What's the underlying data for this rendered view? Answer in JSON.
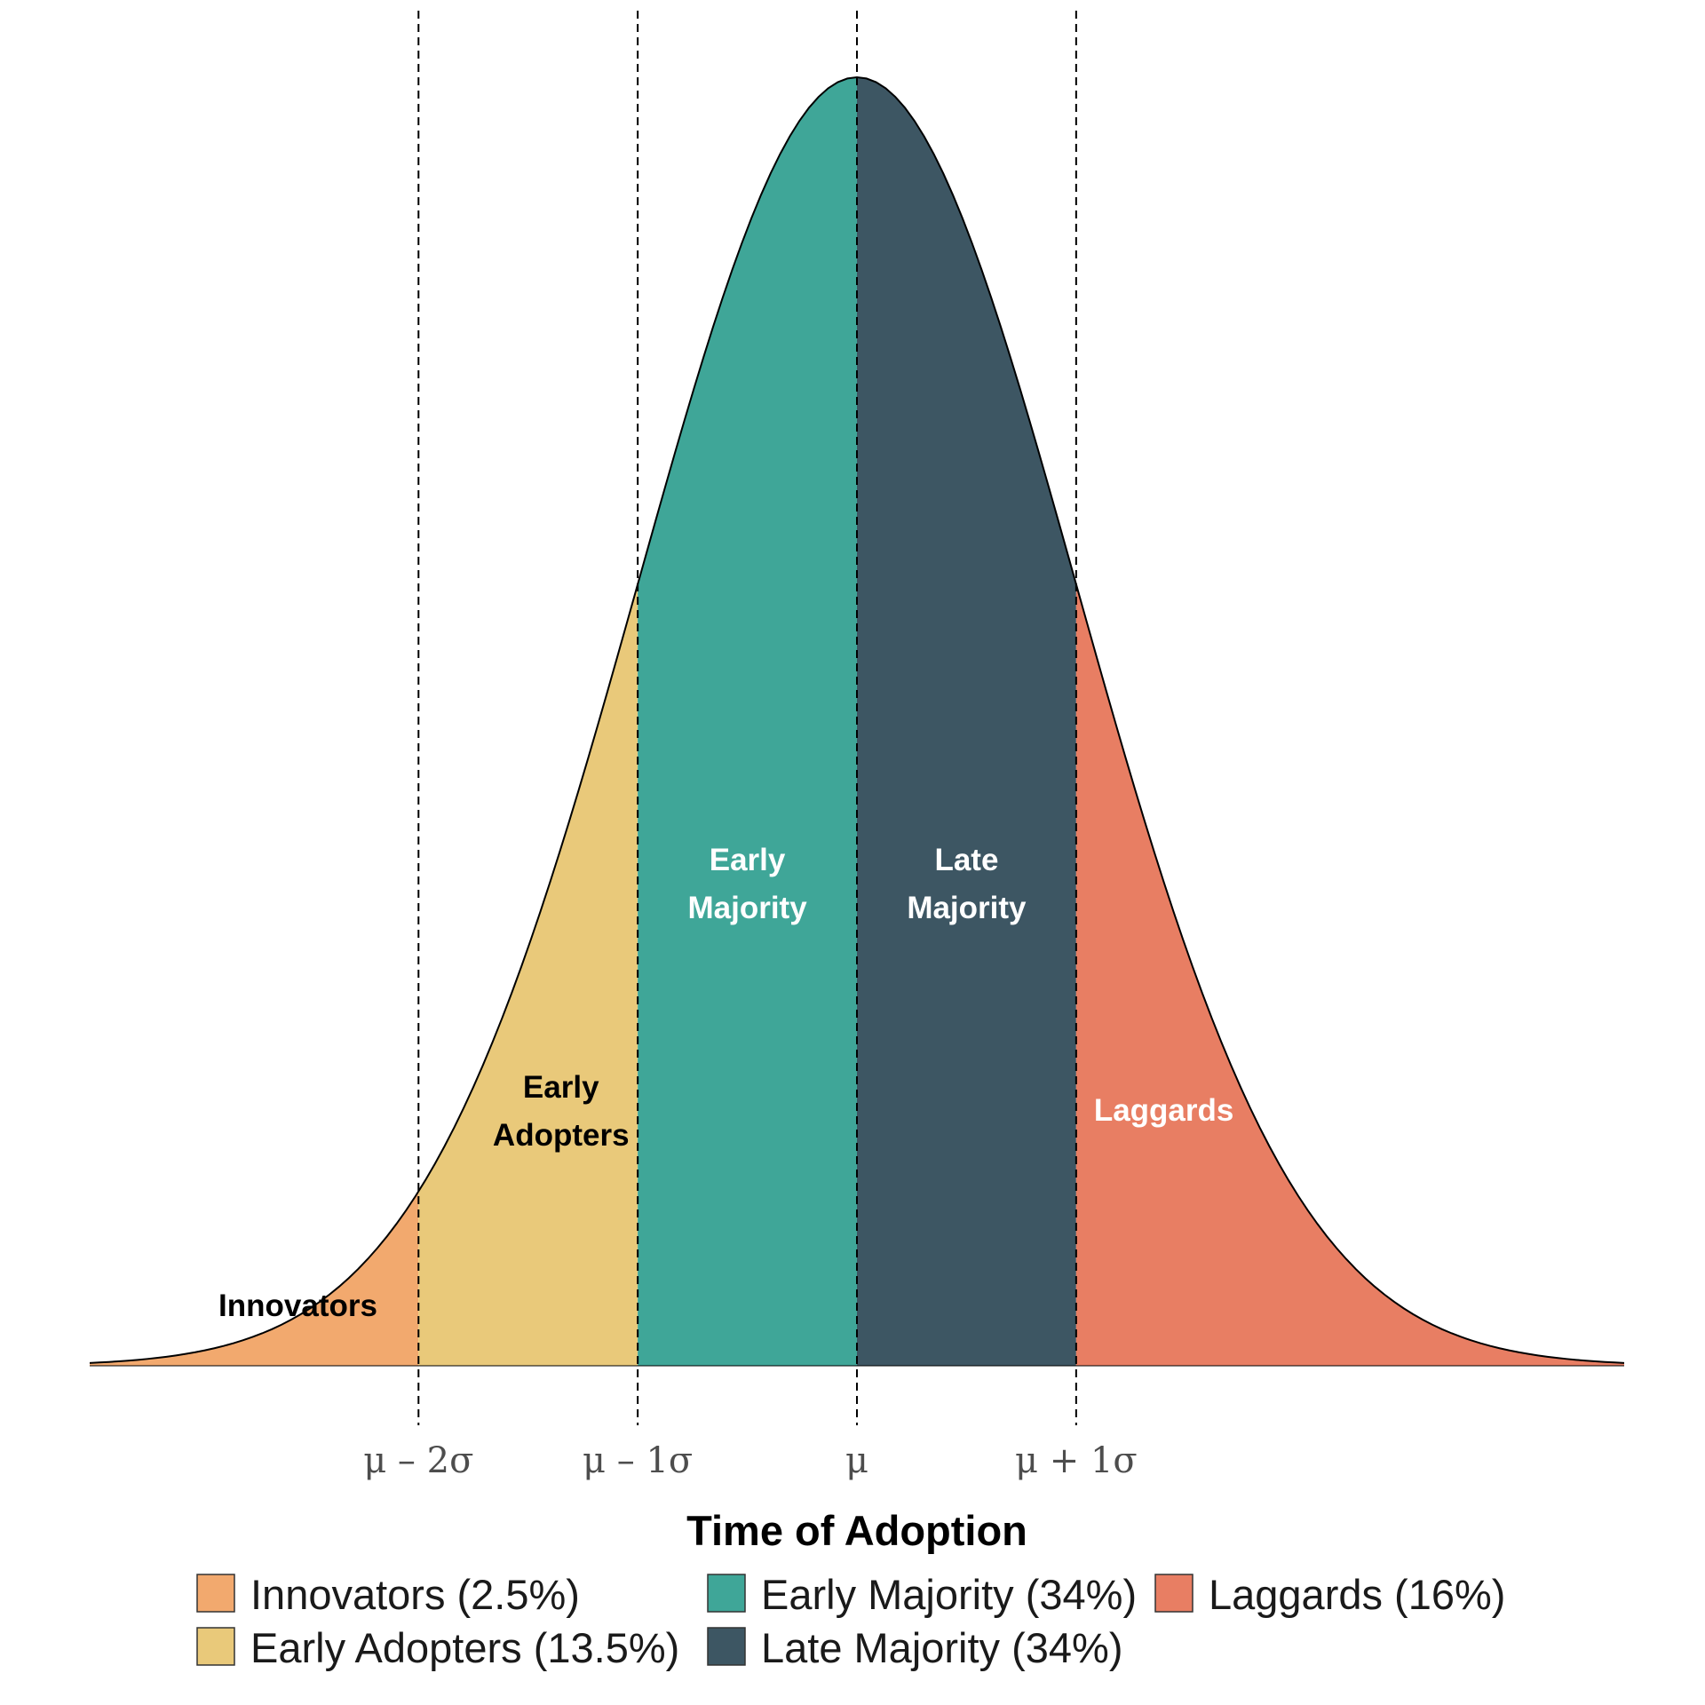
{
  "chart_data": {
    "type": "area",
    "title": "",
    "xlabel": "Time of Adoption",
    "ylabel": "",
    "distribution": "normal",
    "xlim": [
      -3.5,
      3.5
    ],
    "boundaries": [
      -2,
      -1,
      0,
      1
    ],
    "tick_labels": [
      "μ – 2σ",
      "μ – 1σ",
      "μ",
      "μ + 1σ"
    ],
    "segments": [
      {
        "name": "Innovators",
        "label_lines": [
          "Innovators"
        ],
        "from": -3.5,
        "to": -2,
        "share": 2.5,
        "color": "#F2A96E",
        "label_color": "#000000"
      },
      {
        "name": "Early Adopters",
        "label_lines": [
          "Early",
          "Adopters"
        ],
        "from": -2,
        "to": -1,
        "share": 13.5,
        "color": "#E9C97A",
        "label_color": "#000000"
      },
      {
        "name": "Early Majority",
        "label_lines": [
          "Early",
          "Majority"
        ],
        "from": -1,
        "to": 0,
        "share": 34,
        "color": "#3FA698",
        "label_color": "#ffffff"
      },
      {
        "name": "Late Majority",
        "label_lines": [
          "Late",
          "Majority"
        ],
        "from": 0,
        "to": 1,
        "share": 34,
        "color": "#3D5663",
        "label_color": "#ffffff"
      },
      {
        "name": "Laggards",
        "label_lines": [
          "Laggards"
        ],
        "from": 1,
        "to": 3.5,
        "share": 16,
        "color": "#E87E63",
        "label_color": "#ffffff"
      }
    ],
    "legend": [
      {
        "label": "Innovators (2.5%)",
        "color": "#F2A96E"
      },
      {
        "label": "Early Adopters (13.5%)",
        "color": "#E9C97A"
      },
      {
        "label": "Early Majority (34%)",
        "color": "#3FA698"
      },
      {
        "label": "Late Majority (34%)",
        "color": "#3D5663"
      },
      {
        "label": "Laggards (16%)",
        "color": "#E87E63"
      }
    ],
    "legend_position": "bottom"
  }
}
